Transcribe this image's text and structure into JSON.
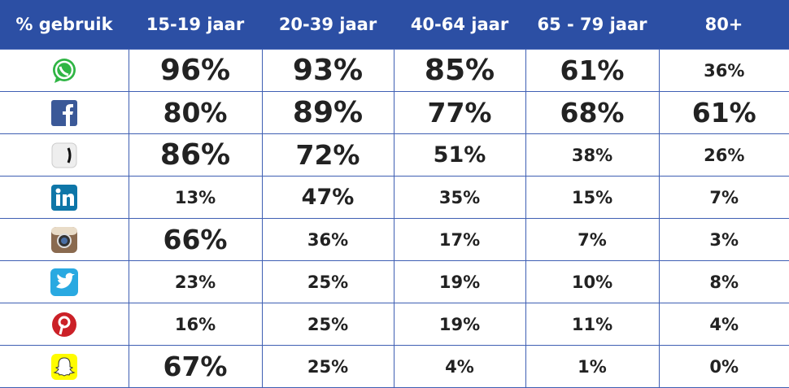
{
  "table": {
    "header": [
      "% gebruik",
      "15-19 jaar",
      "20-39 jaar",
      "40-64 jaar",
      "65 - 79 jaar",
      "80+"
    ],
    "rows": [
      [
        "96%",
        "93%",
        "85%",
        "61%",
        "36%"
      ],
      [
        "80%",
        "89%",
        "77%",
        "68%",
        "61%"
      ],
      [
        "86%",
        "72%",
        "51%",
        "38%",
        "26%"
      ],
      [
        "13%",
        "47%",
        "35%",
        "15%",
        "7%"
      ],
      [
        "66%",
        "36%",
        "17%",
        "7%",
        "3%"
      ],
      [
        "23%",
        "25%",
        "19%",
        "10%",
        "8%"
      ],
      [
        "16%",
        "25%",
        "19%",
        "11%",
        "4%"
      ],
      [
        "67%",
        "25%",
        "4%",
        "1%",
        "0%"
      ]
    ]
  }
}
